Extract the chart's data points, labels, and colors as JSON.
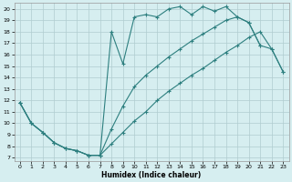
{
  "xlabel": "Humidex (Indice chaleur)",
  "bg_color": "#d6eef0",
  "grid_color": "#b0ccd0",
  "line_color": "#2d7f7f",
  "xlim": [
    -0.5,
    23.5
  ],
  "ylim": [
    6.7,
    20.5
  ],
  "xticks": [
    0,
    1,
    2,
    3,
    4,
    5,
    6,
    7,
    8,
    9,
    10,
    11,
    12,
    13,
    14,
    15,
    16,
    17,
    18,
    19,
    20,
    21,
    22,
    23
  ],
  "yticks": [
    7,
    8,
    9,
    10,
    11,
    12,
    13,
    14,
    15,
    16,
    17,
    18,
    19,
    20
  ],
  "curve_top_x": [
    0,
    1,
    2,
    3,
    4,
    5,
    6,
    7,
    8,
    9,
    10,
    11,
    12,
    13,
    14,
    15,
    16,
    17,
    18,
    19,
    20,
    21
  ],
  "curve_top_y": [
    11.8,
    10.0,
    9.2,
    8.3,
    7.8,
    7.6,
    7.2,
    7.2,
    18.0,
    15.2,
    19.3,
    19.5,
    19.3,
    20.0,
    20.2,
    19.5,
    20.2,
    19.8,
    20.2,
    19.3,
    18.8,
    16.8
  ],
  "curve_mid_x": [
    0,
    1,
    2,
    3,
    4,
    5,
    6,
    7,
    8,
    9,
    10,
    11,
    12,
    13,
    14,
    15,
    16,
    17,
    18,
    19,
    20,
    21,
    22,
    23
  ],
  "curve_mid_y": [
    11.8,
    10.0,
    9.2,
    8.3,
    7.8,
    7.6,
    7.2,
    7.2,
    9.5,
    11.5,
    13.2,
    14.2,
    15.0,
    15.8,
    16.5,
    17.2,
    17.8,
    18.4,
    19.0,
    19.3,
    18.8,
    16.8,
    16.5,
    14.5
  ],
  "curve_bot_x": [
    0,
    1,
    2,
    3,
    4,
    5,
    6,
    7,
    8,
    9,
    10,
    11,
    12,
    13,
    14,
    15,
    16,
    17,
    18,
    19,
    20,
    21,
    22,
    23
  ],
  "curve_bot_y": [
    11.8,
    10.0,
    9.2,
    8.3,
    7.8,
    7.6,
    7.2,
    7.2,
    8.2,
    9.2,
    10.2,
    11.0,
    12.0,
    12.8,
    13.5,
    14.2,
    14.8,
    15.5,
    16.2,
    16.8,
    17.5,
    18.0,
    16.5,
    14.5
  ]
}
